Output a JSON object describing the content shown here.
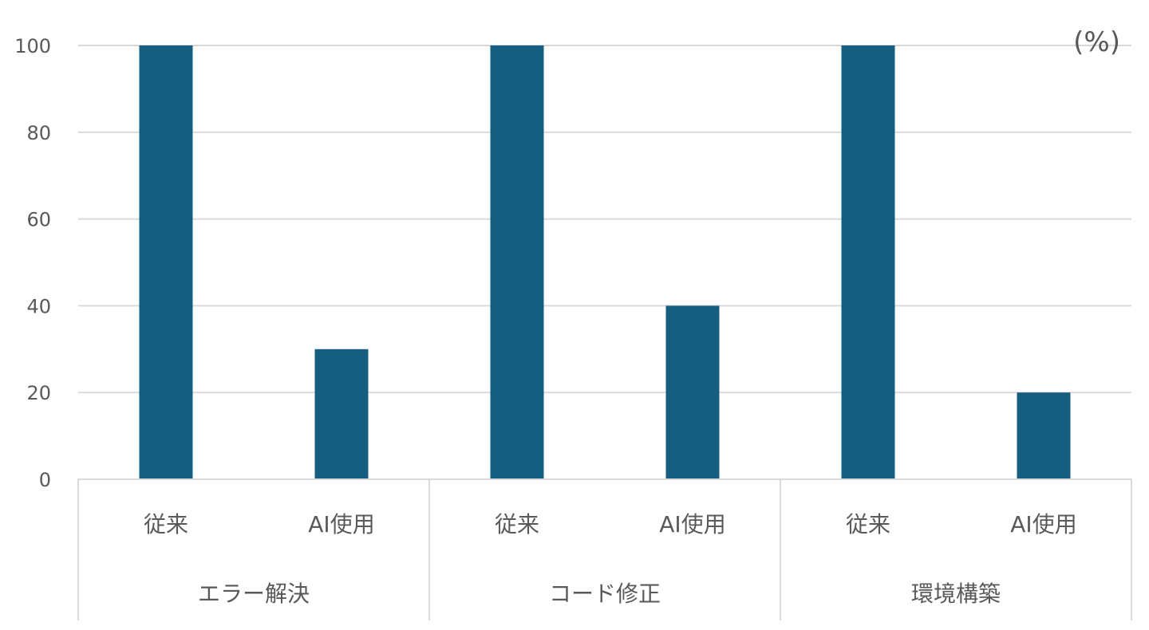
{
  "chart_data": {
    "type": "bar",
    "unit_label": "(%)",
    "groups": [
      {
        "label": "エラー解決",
        "categories": [
          "従来",
          "AI使用"
        ],
        "values": [
          100,
          30
        ]
      },
      {
        "label": "コード修正",
        "categories": [
          "従来",
          "AI使用"
        ],
        "values": [
          100,
          40
        ]
      },
      {
        "label": "環境構築",
        "categories": [
          "従来",
          "AI使用"
        ],
        "values": [
          100,
          20
        ]
      }
    ],
    "ylim": [
      0,
      100
    ],
    "yticks": [
      "0",
      "20",
      "40",
      "60",
      "80",
      "100"
    ],
    "grid": true,
    "legend": "none",
    "bar_color": "#165e80",
    "grid_color": "#d9d9d9"
  }
}
